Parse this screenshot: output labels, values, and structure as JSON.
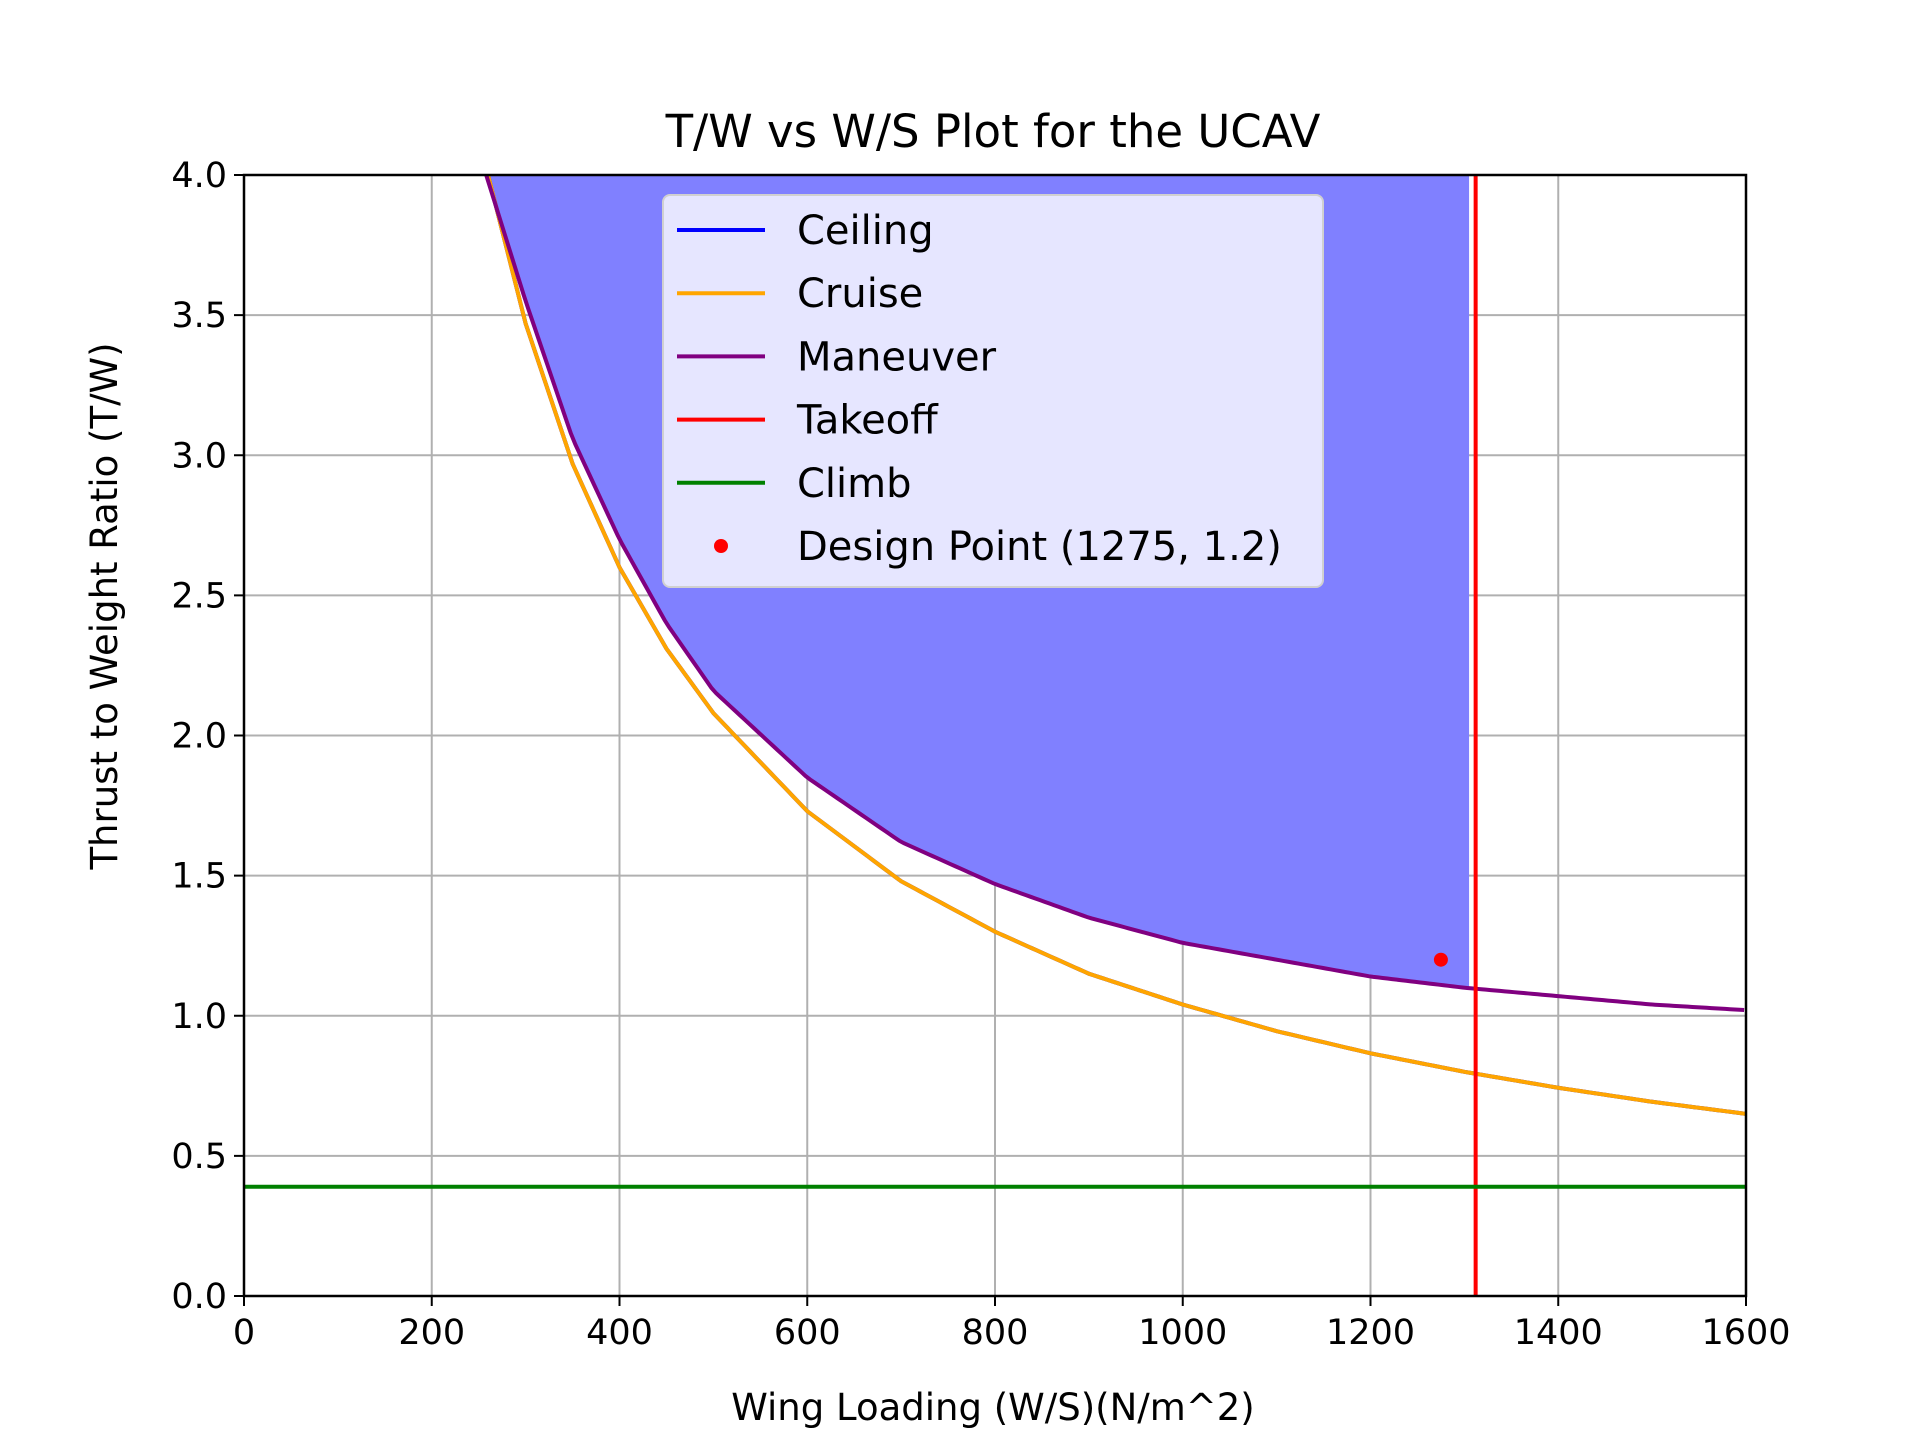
{
  "chart_data": {
    "type": "line",
    "title": "T/W vs W/S Plot for the UCAV",
    "xlabel": "Wing Loading (W/S)(N/m^2)",
    "ylabel": "Thrust to Weight Ratio (T/W)",
    "xlim": [
      0,
      1600
    ],
    "ylim": [
      0,
      4.0
    ],
    "xticks": [
      "0",
      "200",
      "400",
      "600",
      "800",
      "1000",
      "1200",
      "1400",
      "1600"
    ],
    "yticks": [
      "0.0",
      "0.5",
      "1.0",
      "1.5",
      "2.0",
      "2.5",
      "3.0",
      "3.5",
      "4.0"
    ],
    "grid": true,
    "legend_position": "upper center",
    "series": [
      {
        "name": "Ceiling",
        "color": "#0000ff",
        "x": [
          260,
          300,
          350,
          400,
          450,
          500,
          600,
          700,
          800,
          900,
          1000,
          1100,
          1200,
          1300,
          1400,
          1500,
          1600
        ],
        "y": [
          4.0,
          3.47,
          2.97,
          2.6,
          2.31,
          2.08,
          1.73,
          1.48,
          1.3,
          1.15,
          1.04,
          0.945,
          0.866,
          0.8,
          0.743,
          0.693,
          0.65
        ]
      },
      {
        "name": "Cruise",
        "color": "#ffa500",
        "x": [
          260,
          300,
          350,
          400,
          450,
          500,
          600,
          700,
          800,
          900,
          1000,
          1100,
          1200,
          1300,
          1400,
          1500,
          1600
        ],
        "y": [
          4.0,
          3.47,
          2.97,
          2.6,
          2.31,
          2.08,
          1.73,
          1.48,
          1.3,
          1.15,
          1.04,
          0.945,
          0.866,
          0.8,
          0.743,
          0.693,
          0.65
        ]
      },
      {
        "name": "Maneuver",
        "color": "#800080",
        "x": [
          258,
          300,
          350,
          400,
          450,
          500,
          600,
          700,
          800,
          900,
          1000,
          1100,
          1200,
          1300,
          1400,
          1500,
          1600
        ],
        "y": [
          4.0,
          3.55,
          3.06,
          2.7,
          2.4,
          2.16,
          1.85,
          1.62,
          1.47,
          1.35,
          1.26,
          1.2,
          1.14,
          1.1,
          1.07,
          1.04,
          1.02
        ]
      },
      {
        "name": "Takeoff",
        "color": "#ff0000",
        "x": [
          1312,
          1312
        ],
        "y": [
          0,
          4.0
        ]
      },
      {
        "name": "Climb",
        "color": "#008000",
        "x": [
          0,
          1600
        ],
        "y": [
          0.39,
          0.39
        ]
      }
    ],
    "points": [
      {
        "name": "Design Point (1275, 1.2)",
        "color": "#ff0000",
        "x": 1275,
        "y": 1.2
      }
    ],
    "fill": {
      "color": "#8080ff",
      "description_series": "between Maneuver curve and T/W = 4.0, up to W/S = 1305"
    }
  }
}
